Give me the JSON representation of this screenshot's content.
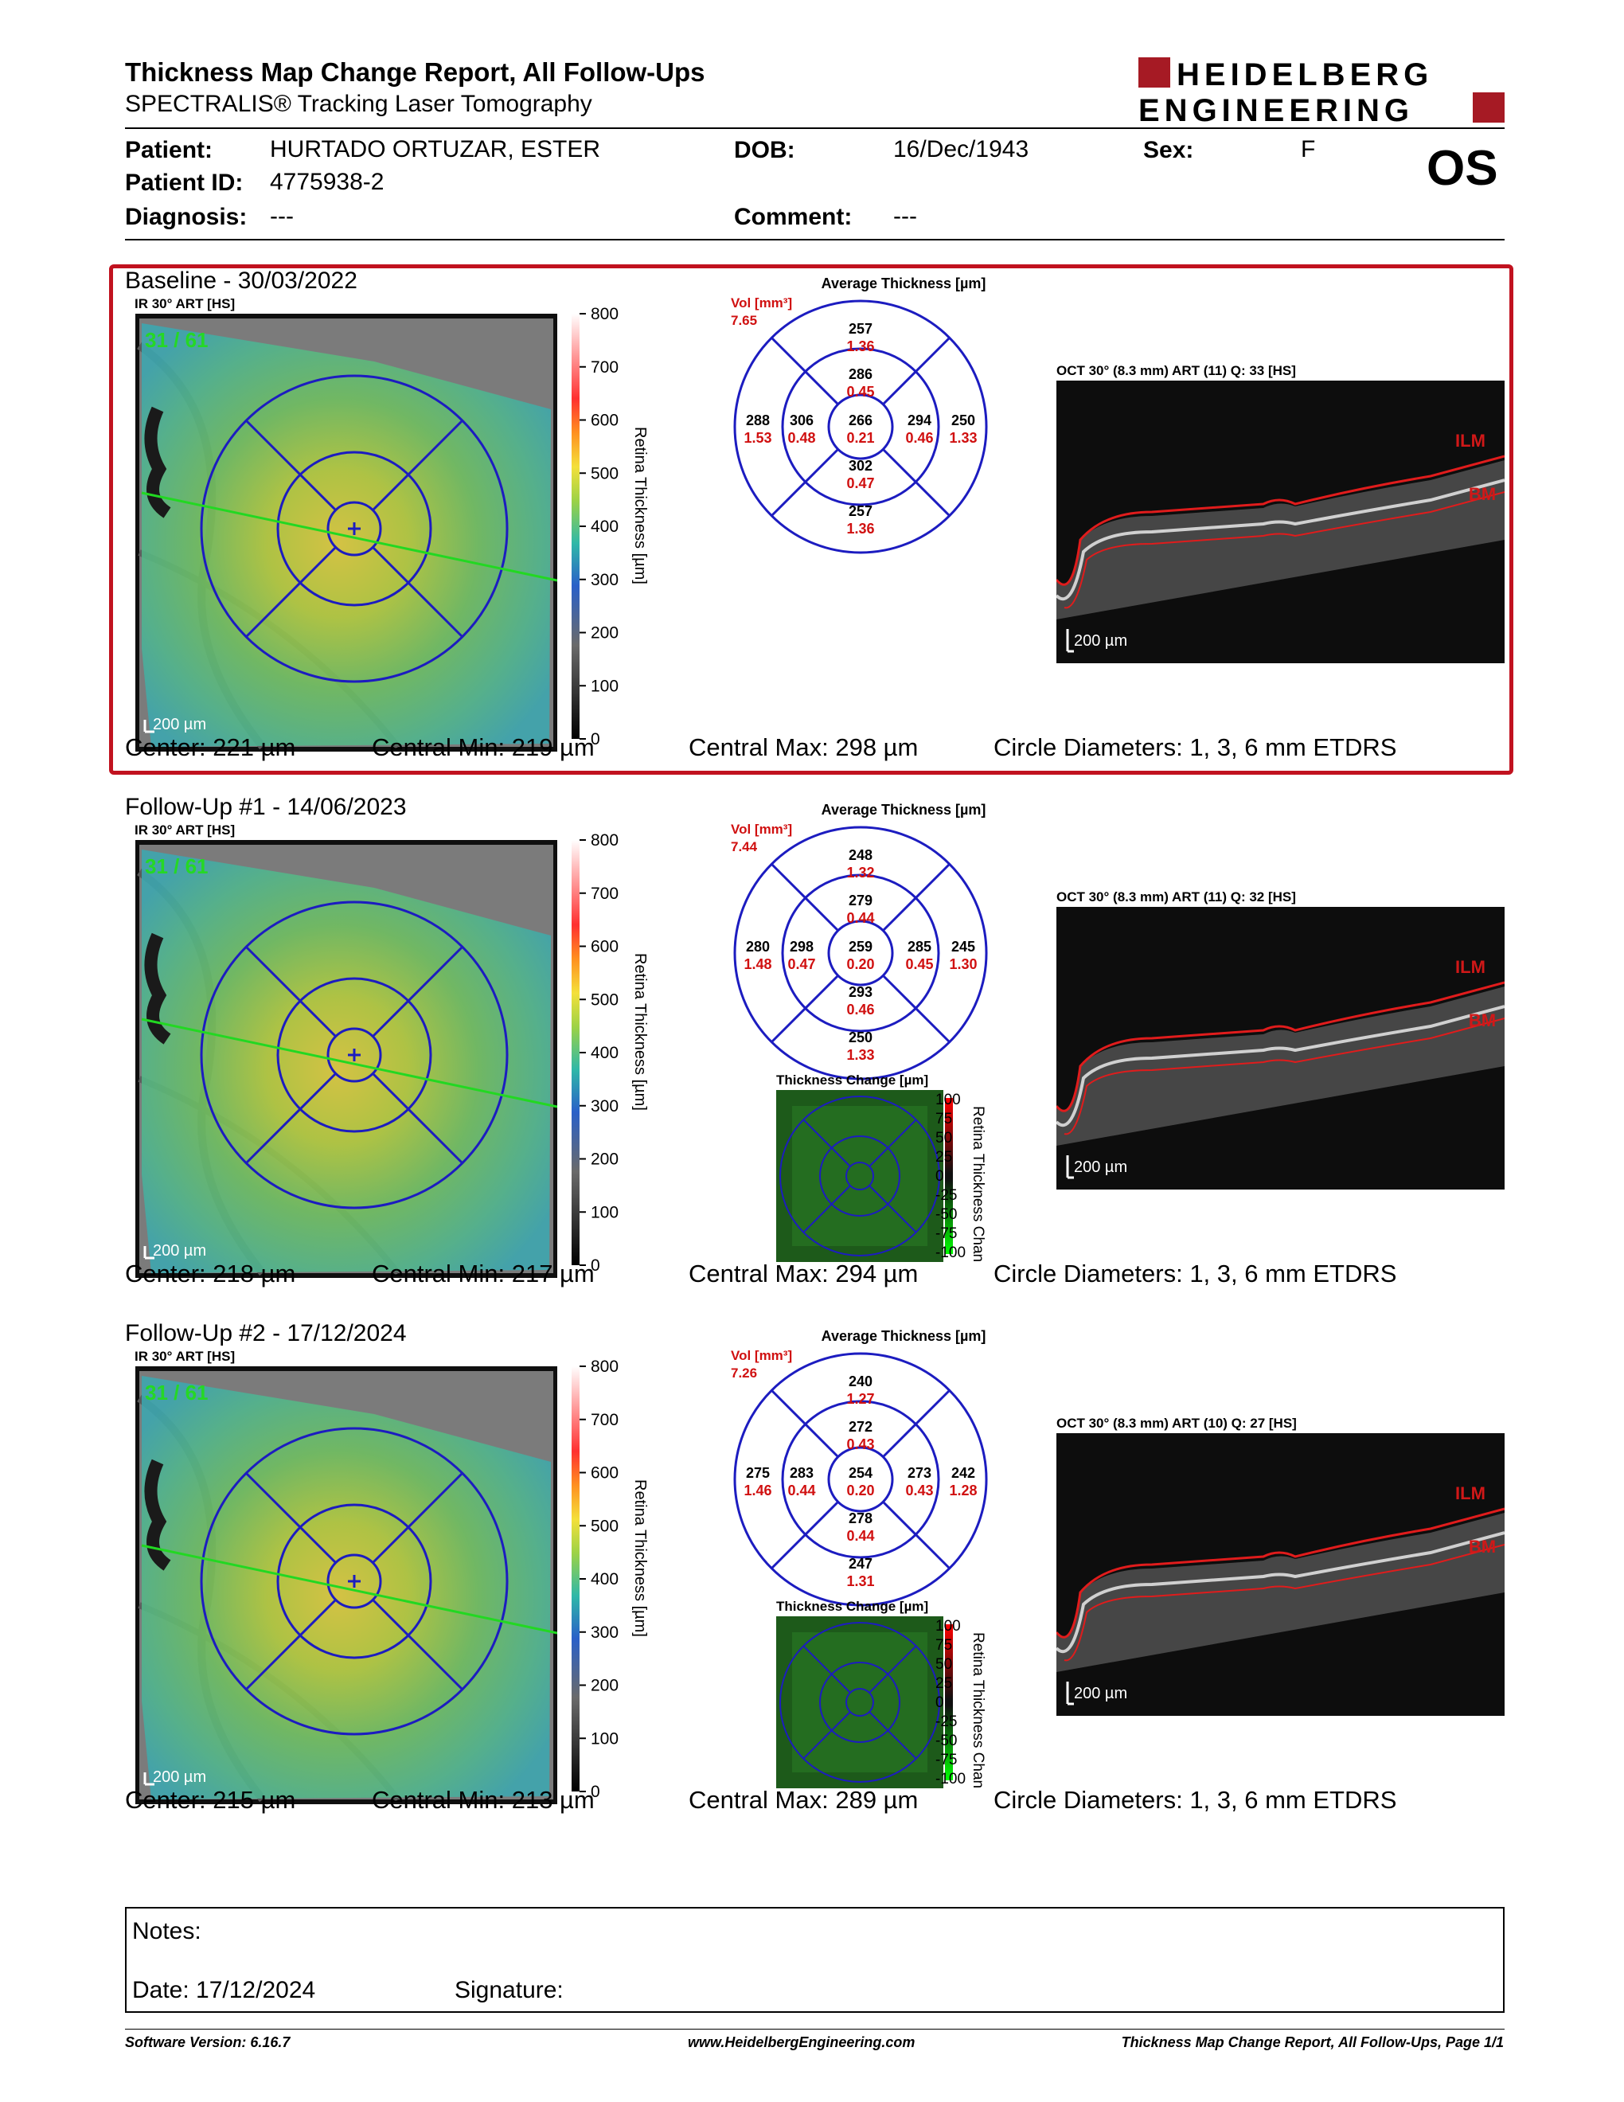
{
  "header": {
    "title": "Thickness Map Change Report, All Follow-Ups",
    "subtitle": "SPECTRALIS® Tracking Laser Tomography",
    "logo_line1": "HEIDELBERG",
    "logo_line2": "ENGINEERING",
    "brand_color": "#a61a24"
  },
  "patient": {
    "patient_label": "Patient:",
    "patient_name": "HURTADO ORTUZAR, ESTER",
    "dob_label": "DOB:",
    "dob": "16/Dec/1943",
    "sex_label": "Sex:",
    "sex": "F",
    "id_label": "Patient ID:",
    "id": "4775938-2",
    "diagnosis_label": "Diagnosis:",
    "diagnosis": "---",
    "comment_label": "Comment:",
    "comment": "---",
    "eye": "OS"
  },
  "exams": [
    {
      "title": "Baseline - 30/03/2022",
      "ir_label": "IR 30° ART [HS]",
      "frame_label": "31 / 61",
      "scale_label": "200 µm",
      "colorbar_ticks": [
        "800",
        "700",
        "600",
        "500",
        "400",
        "300",
        "200",
        "100",
        "0"
      ],
      "colorbar_title": "Retina Thickness [µm]",
      "etdrs_title": "Average Thickness [µm]",
      "vol_label": "Vol [mm³]",
      "vol_value": "7.65",
      "etdrs": {
        "center": [
          "266",
          "0.21"
        ],
        "inner_sup": [
          "286",
          "0.45"
        ],
        "inner_nas": [
          "306",
          "0.48"
        ],
        "inner_inf": [
          "302",
          "0.47"
        ],
        "inner_tmp": [
          "294",
          "0.46"
        ],
        "outer_sup": [
          "257",
          "1.36"
        ],
        "outer_nas": [
          "288",
          "1.53"
        ],
        "outer_inf": [
          "257",
          "1.36"
        ],
        "outer_tmp": [
          "250",
          "1.33"
        ]
      },
      "oct_label": "OCT 30° (8.3 mm) ART (11) Q: 33 [HS]",
      "ilm": "ILM",
      "bm": "BM",
      "oct_scale": "200 µm",
      "center_stat": "Center: 221 µm",
      "cmin_stat": "Central Min: 219 µm",
      "cmax_stat": "Central Max: 298 µm",
      "circle_stat": "Circle Diameters:  1, 3, 6 mm ETDRS"
    },
    {
      "title": "Follow-Up #1 - 14/06/2023",
      "ir_label": "IR 30° ART [HS]",
      "frame_label": "31 / 61",
      "scale_label": "200 µm",
      "colorbar_ticks": [
        "800",
        "700",
        "600",
        "500",
        "400",
        "300",
        "200",
        "100",
        "0"
      ],
      "colorbar_title": "Retina Thickness [µm]",
      "etdrs_title": "Average Thickness [µm]",
      "vol_label": "Vol [mm³]",
      "vol_value": "7.44",
      "etdrs": {
        "center": [
          "259",
          "0.20"
        ],
        "inner_sup": [
          "279",
          "0.44"
        ],
        "inner_nas": [
          "298",
          "0.47"
        ],
        "inner_inf": [
          "293",
          "0.46"
        ],
        "inner_tmp": [
          "285",
          "0.45"
        ],
        "outer_sup": [
          "248",
          "1.32"
        ],
        "outer_nas": [
          "280",
          "1.48"
        ],
        "outer_inf": [
          "250",
          "1.33"
        ],
        "outer_tmp": [
          "245",
          "1.30"
        ]
      },
      "change_title": "Thickness Change [µm]",
      "change_ticks": [
        "100",
        "75",
        "50",
        "25",
        "0",
        "-25",
        "-50",
        "-75",
        "-100"
      ],
      "change_axis": "Retina Thickness Chan",
      "oct_label": "OCT 30° (8.3 mm) ART (11) Q: 32 [HS]",
      "ilm": "ILM",
      "bm": "BM",
      "oct_scale": "200 µm",
      "center_stat": "Center: 218 µm",
      "cmin_stat": "Central Min: 217 µm",
      "cmax_stat": "Central Max: 294 µm",
      "circle_stat": "Circle Diameters:  1, 3, 6 mm ETDRS"
    },
    {
      "title": "Follow-Up #2 - 17/12/2024",
      "ir_label": "IR 30° ART [HS]",
      "frame_label": "31 / 61",
      "scale_label": "200 µm",
      "colorbar_ticks": [
        "800",
        "700",
        "600",
        "500",
        "400",
        "300",
        "200",
        "100",
        "0"
      ],
      "colorbar_title": "Retina Thickness [µm]",
      "etdrs_title": "Average Thickness [µm]",
      "vol_label": "Vol [mm³]",
      "vol_value": "7.26",
      "etdrs": {
        "center": [
          "254",
          "0.20"
        ],
        "inner_sup": [
          "272",
          "0.43"
        ],
        "inner_nas": [
          "283",
          "0.44"
        ],
        "inner_inf": [
          "278",
          "0.44"
        ],
        "inner_tmp": [
          "273",
          "0.43"
        ],
        "outer_sup": [
          "240",
          "1.27"
        ],
        "outer_nas": [
          "275",
          "1.46"
        ],
        "outer_inf": [
          "247",
          "1.31"
        ],
        "outer_tmp": [
          "242",
          "1.28"
        ]
      },
      "change_title": "Thickness Change [µm]",
      "change_ticks": [
        "100",
        "75",
        "50",
        "25",
        "0",
        "-25",
        "-50",
        "-75",
        "-100"
      ],
      "change_axis": "Retina Thickness Chan",
      "oct_label": "OCT 30° (8.3 mm) ART (10) Q: 27 [HS]",
      "ilm": "ILM",
      "bm": "BM",
      "oct_scale": "200 µm",
      "center_stat": "Center: 215 µm",
      "cmin_stat": "Central Min: 213 µm",
      "cmax_stat": "Central Max: 289 µm",
      "circle_stat": "Circle Diameters:  1, 3, 6 mm ETDRS"
    }
  ],
  "notes": {
    "notes_label": "Notes:",
    "date_label": "Date: 17/12/2024",
    "signature_label": "Signature:"
  },
  "footer": {
    "software": "Software Version: 6.16.7",
    "website": "www.HeidelbergEngineering.com",
    "page": "Thickness Map Change Report, All Follow-Ups, Page 1/1"
  }
}
